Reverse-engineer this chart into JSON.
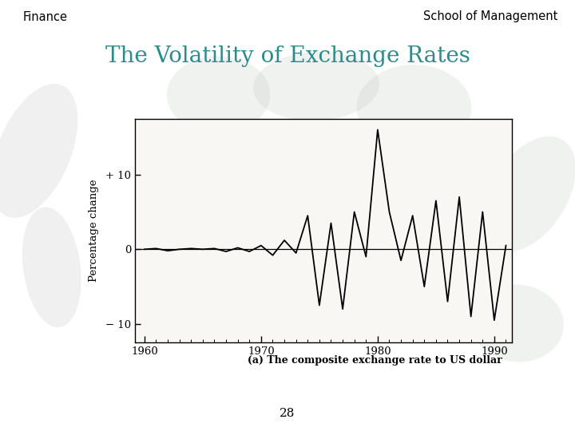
{
  "title": "The Volatility of Exchange Rates",
  "title_color": "#2E8B8B",
  "header_left": "Finance",
  "header_right": "School of Management",
  "caption": "(a) The composite exchange rate to US dollar",
  "page_number": "28",
  "ylabel": "Percentage change",
  "xlabel_ticks": [
    1960,
    1970,
    1980,
    1990
  ],
  "yticks": [
    -10,
    0,
    10
  ],
  "ytick_labels": [
    "− 10",
    "0",
    "+ 10"
  ],
  "xlim": [
    1959.2,
    1991.5
  ],
  "ylim": [
    -12.5,
    17.5
  ],
  "plot_bg": "#f5f5f0",
  "slide_background": "#ffffff",
  "years": [
    1960,
    1961,
    1962,
    1963,
    1964,
    1965,
    1966,
    1967,
    1968,
    1969,
    1970,
    1971,
    1972,
    1973,
    1974,
    1975,
    1976,
    1977,
    1978,
    1979,
    1980,
    1981,
    1982,
    1983,
    1984,
    1985,
    1986,
    1987,
    1988,
    1989,
    1990,
    1991
  ],
  "values": [
    0.0,
    0.1,
    -0.2,
    0.0,
    0.1,
    0.0,
    0.1,
    -0.3,
    0.2,
    -0.3,
    0.5,
    -0.8,
    1.2,
    -0.5,
    4.5,
    -7.5,
    3.5,
    -8.0,
    5.0,
    -1.0,
    16.0,
    5.0,
    -1.5,
    4.5,
    -5.0,
    6.5,
    -7.0,
    7.0,
    -9.0,
    5.0,
    -9.5,
    0.5
  ]
}
